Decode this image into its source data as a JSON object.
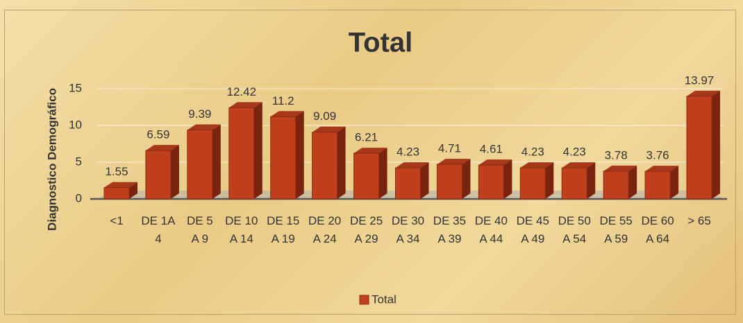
{
  "chart_data": {
    "type": "bar3d",
    "title": "Total",
    "y_axis_label": "Diagnostico  Demográfico",
    "categories": [
      "<1",
      "DE 1A 4",
      "DE 5 A 9",
      "DE 10 A 14",
      "DE 15 A 19",
      "DE 20 A 24",
      "DE 25 A 29",
      "DE 30 A 34",
      "DE 35 A 39",
      "DE 40 A 44",
      "DE 45 A 49",
      "DE 50 A 54",
      "DE 55 A 59",
      "DE 60 A 64",
      "> 65"
    ],
    "series": [
      {
        "name": "Total",
        "color": "#c0401e",
        "values": [
          1.55,
          6.59,
          9.39,
          12.42,
          11.2,
          9.09,
          6.21,
          4.23,
          4.71,
          4.61,
          4.23,
          4.23,
          3.78,
          3.76,
          13.97
        ]
      }
    ],
    "ylim": [
      0,
      15
    ],
    "yticks": [
      0,
      5,
      10,
      15
    ],
    "grid": true,
    "legend": "bottom"
  }
}
